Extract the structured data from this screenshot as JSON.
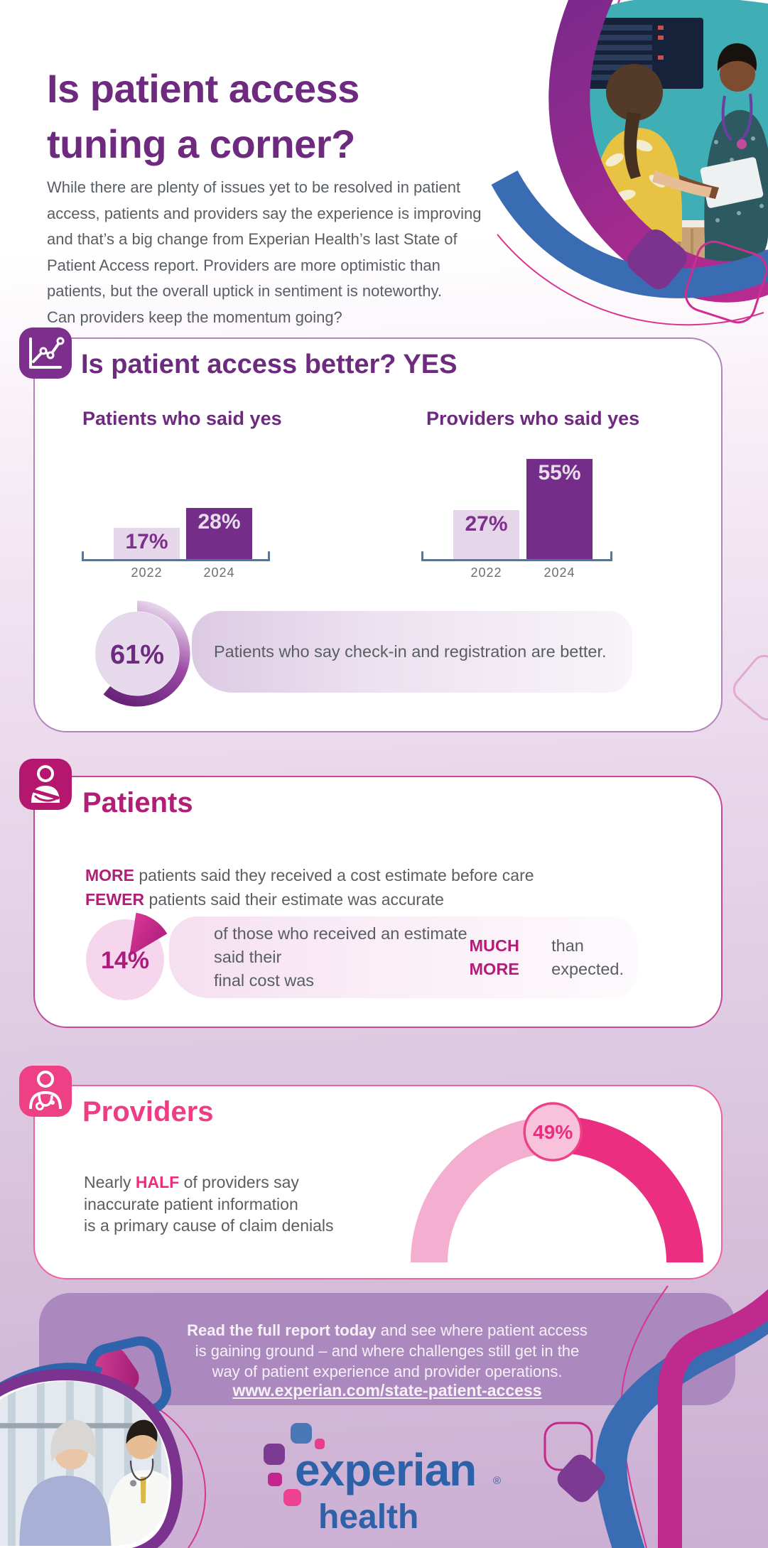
{
  "header": {
    "title": "Is patient access\ntuning a corner?",
    "intro": "While there are plenty of issues yet to be resolved in patient\naccess, patients and providers say the experience is improving\nand that’s a big change from Experian Health’s last State of\nPatient Access report. Providers are more optimistic than\npatients, but the overall uptick in sentiment is noteworthy.\nCan providers keep the momentum going?"
  },
  "section_better": {
    "icon": "trend-line-chart-icon",
    "title": "Is patient access better? YES",
    "donut_value": "61%",
    "donut_text": "Patients who say check-in and registration are better."
  },
  "section_patients": {
    "icon": "patient-arm-sling-icon",
    "title": "Patients",
    "line1_bold": "MORE",
    "line1_rest": " patients said they received a cost estimate before care",
    "line2_bold": "FEWER",
    "line2_rest": " patients said their estimate was accurate",
    "stat_value": "14%",
    "stat_text_pre": "of those who received an estimate said their\nfinal cost was ",
    "stat_text_bold": "MUCH MORE",
    "stat_text_post": " than expected."
  },
  "section_providers": {
    "icon": "doctor-stethoscope-icon",
    "title": "Providers",
    "text_pre": "Nearly ",
    "text_bold": "HALF",
    "text_post": " of providers say\ninaccurate patient information\nis a primary cause of claim denials",
    "gauge_value": "49%"
  },
  "footer": {
    "cta_bold": "Read the full report today",
    "cta_rest": " and see where patient access\nis gaining ground – and where challenges still get in the\nway of patient experience and provider operations.",
    "link": "www.experian.com/state-patient-access"
  },
  "logo": {
    "name": "experian",
    "registered": "®",
    "sub": "health"
  },
  "colors": {
    "headline_purple": "#6d2a7f",
    "bar_dark_purple": "#742d88",
    "bar_light_lavender": "#e6d6e9",
    "axis_blue": "#4779a9",
    "body_gray": "#595e63",
    "patients_magenta": "#b21e77",
    "providers_pink": "#ee3d85",
    "gauge_light_pink": "#f4afd0",
    "gauge_dark_pink": "#ec2e81",
    "experian_blue": "#2d62a8"
  },
  "chart_data": [
    {
      "type": "bar",
      "title": "Patients who said yes",
      "categories": [
        "2022",
        "2024"
      ],
      "values": [
        17,
        28
      ],
      "value_labels": [
        "17%",
        "28%"
      ],
      "ylim": [
        0,
        60
      ],
      "bar_colors": [
        "#e6d6e9",
        "#742d88"
      ]
    },
    {
      "type": "bar",
      "title": "Providers who said yes",
      "categories": [
        "2022",
        "2024"
      ],
      "values": [
        27,
        55
      ],
      "value_labels": [
        "27%",
        "55%"
      ],
      "ylim": [
        0,
        60
      ],
      "bar_colors": [
        "#e6d6e9",
        "#742d88"
      ]
    },
    {
      "type": "pie",
      "title": "Patients who say check-in and registration are better.",
      "values": [
        61,
        39
      ],
      "labels": [
        "61%",
        ""
      ],
      "colors": [
        "#6c2480",
        "#e7d9ec"
      ]
    },
    {
      "type": "pie",
      "title": "of those who received an estimate said their final cost was MUCH MORE than expected.",
      "values": [
        14,
        86
      ],
      "labels": [
        "14%",
        ""
      ],
      "colors": [
        "#c12a8d",
        "#f6d6ec"
      ]
    },
    {
      "type": "gauge",
      "title": "Nearly HALF of providers say inaccurate patient information is a primary cause of claim denials",
      "value": 49,
      "max": 100,
      "label": "49%",
      "colors": [
        "#f4afd0",
        "#ec2e81"
      ]
    }
  ]
}
